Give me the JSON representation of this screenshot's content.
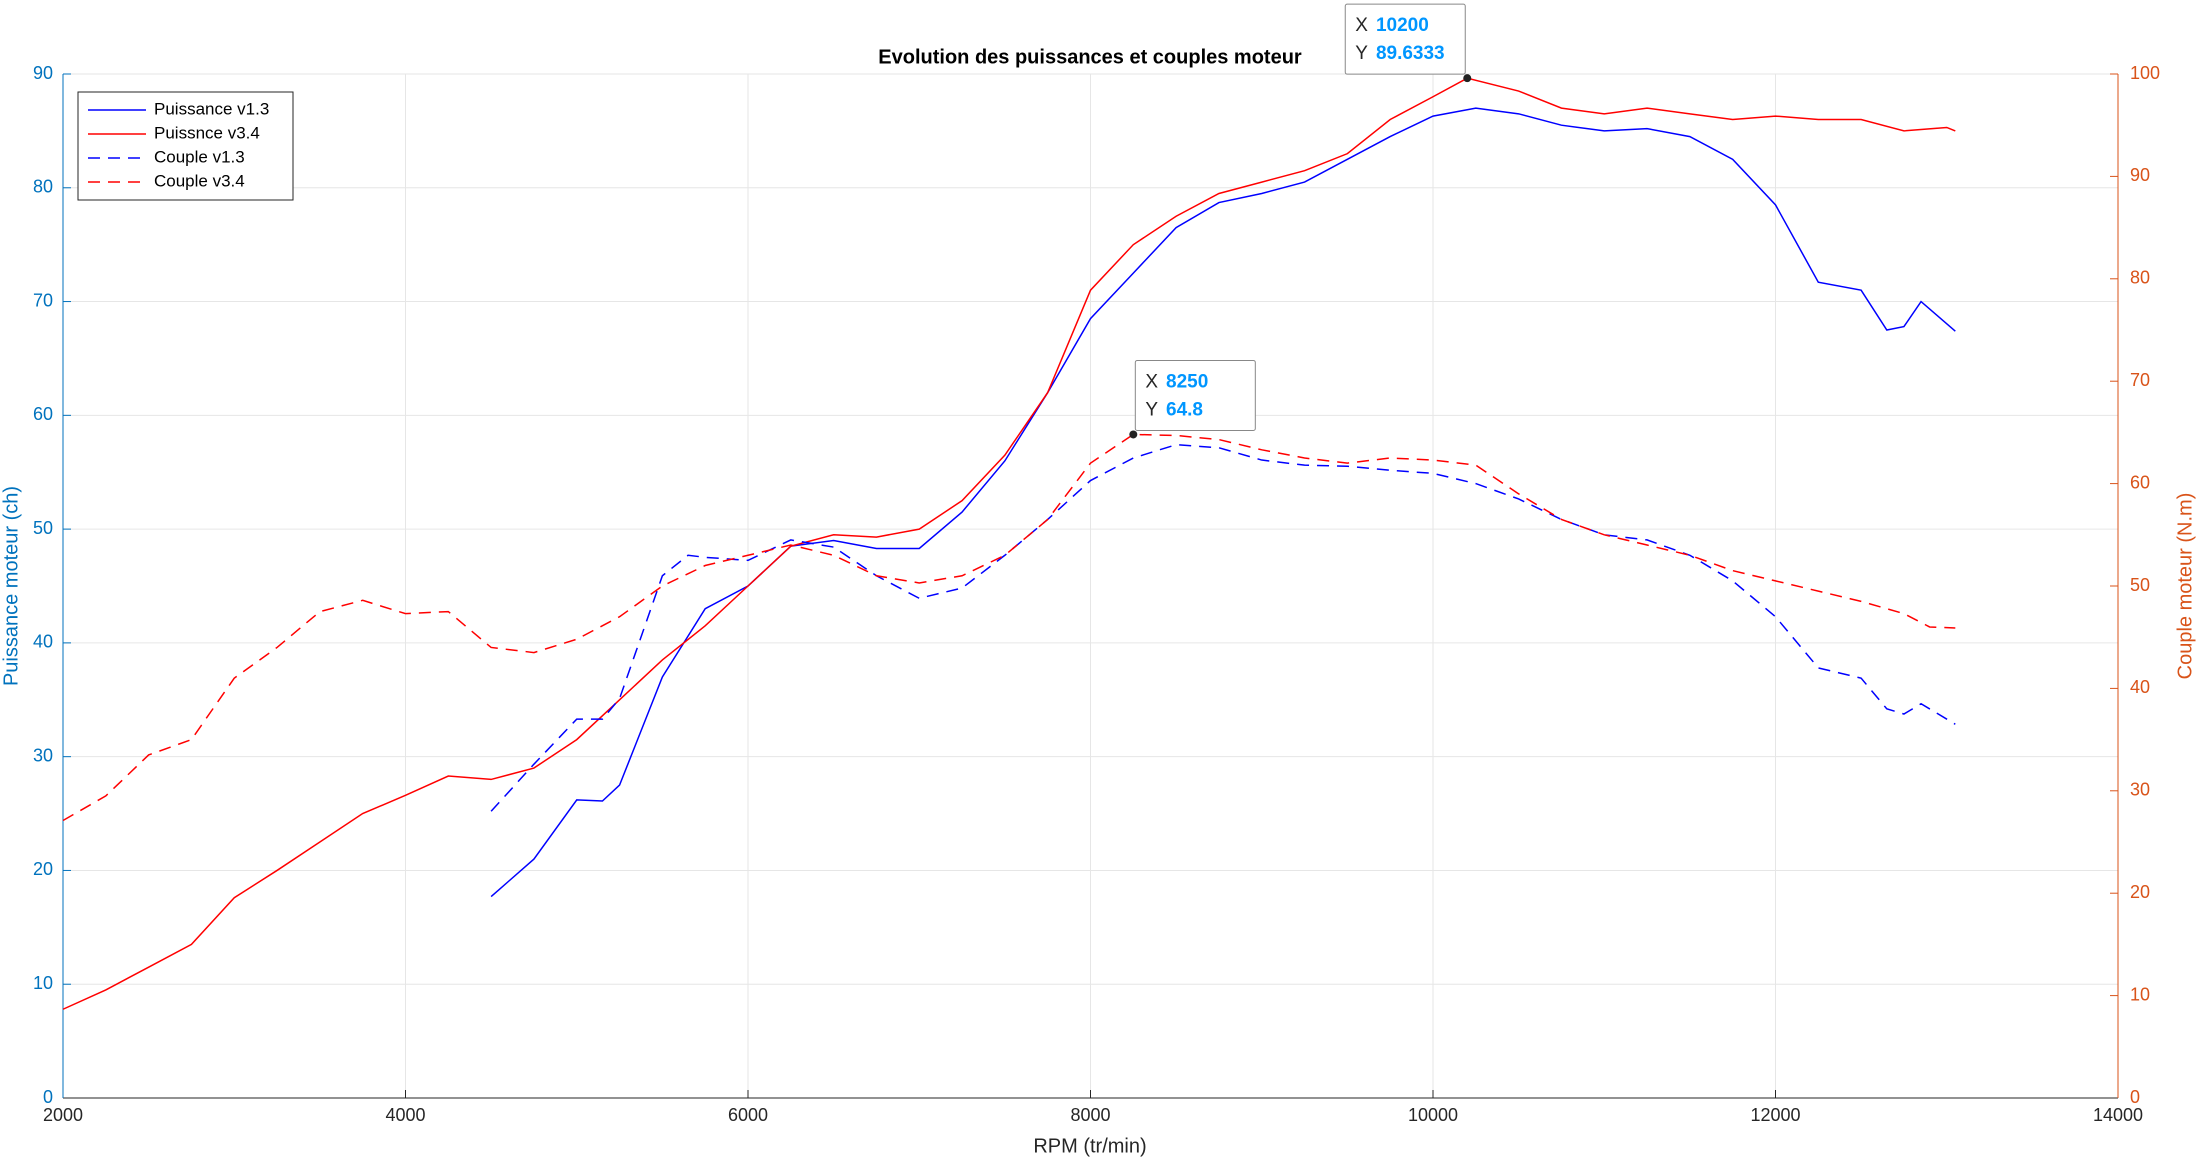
{
  "chart_data": {
    "type": "line",
    "title": "Evolution des puissances et couples moteur",
    "xlabel": "RPM (tr/min)",
    "ylabel": "Puissance moteur (ch)",
    "y2label": "Couple moteur (N.m)",
    "xlim": [
      2000,
      14000
    ],
    "xticks": [
      2000,
      4000,
      6000,
      8000,
      10000,
      12000,
      14000
    ],
    "ylim": [
      0,
      90
    ],
    "yticks": [
      0,
      10,
      20,
      30,
      40,
      50,
      60,
      70,
      80,
      90
    ],
    "y2lim": [
      0,
      100
    ],
    "y2ticks": [
      0,
      10,
      20,
      30,
      40,
      50,
      60,
      70,
      80,
      90,
      100
    ],
    "ycolor": "#0072bd",
    "y2color": "#d95319",
    "grid": true,
    "legend": "northwest",
    "series": [
      {
        "name": "Puissance v1.3",
        "color": "#0000ff",
        "linestyle": "solid",
        "axis": "y",
        "x": [
          4500,
          4750,
          5000,
          5150,
          5250,
          5500,
          5750,
          6000,
          6250,
          6500,
          6750,
          7000,
          7250,
          7500,
          7750,
          8000,
          8250,
          8500,
          8750,
          9000,
          9250,
          9500,
          9750,
          10000,
          10250,
          10500,
          10750,
          11000,
          11250,
          11500,
          11750,
          12000,
          12250,
          12500,
          12650,
          12750,
          12850,
          13050
        ],
        "values": [
          17.7,
          21,
          26.2,
          26.1,
          27.5,
          37,
          43,
          45,
          48.5,
          49,
          48.3,
          48.3,
          51.5,
          56,
          62,
          68.5,
          72.5,
          76.5,
          78.7,
          79.5,
          80.5,
          82.5,
          84.5,
          86.3,
          87,
          86.5,
          85.5,
          85,
          85.2,
          84.5,
          82.5,
          78.5,
          71.7,
          71,
          67.5,
          67.8,
          70,
          67.4
        ]
      },
      {
        "name": "Puissnce v3.4",
        "color": "#ff0000",
        "linestyle": "solid",
        "axis": "y",
        "x": [
          2000,
          2250,
          2500,
          2750,
          3000,
          3250,
          3500,
          3750,
          4000,
          4250,
          4500,
          4750,
          5000,
          5250,
          5500,
          5750,
          6000,
          6250,
          6500,
          6750,
          7000,
          7250,
          7500,
          7750,
          8000,
          8250,
          8500,
          8750,
          9000,
          9250,
          9500,
          9750,
          10000,
          10200,
          10500,
          10750,
          11000,
          11250,
          11500,
          11750,
          12000,
          12250,
          12500,
          12750,
          13000,
          13050
        ],
        "values": [
          7.8,
          9.5,
          11.5,
          13.5,
          17.6,
          20,
          22.5,
          25,
          26.6,
          28.3,
          28,
          29,
          31.5,
          35,
          38.5,
          41.5,
          45,
          48.5,
          49.5,
          49.3,
          50,
          52.5,
          56.5,
          62,
          71,
          75,
          77.5,
          79.5,
          80.5,
          81.5,
          83,
          86,
          88,
          89.6333,
          88.5,
          87,
          86.5,
          87,
          86.5,
          86,
          86.3,
          86,
          86,
          85,
          85.3,
          85
        ]
      },
      {
        "name": "Couple v1.3",
        "color": "#0000ff",
        "linestyle": "dashed",
        "axis": "y2",
        "x": [
          4500,
          4750,
          5000,
          5150,
          5250,
          5500,
          5650,
          5750,
          6000,
          6250,
          6500,
          6750,
          7000,
          7250,
          7500,
          7750,
          8000,
          8250,
          8500,
          8750,
          9000,
          9250,
          9500,
          9750,
          10000,
          10250,
          10500,
          10750,
          11000,
          11250,
          11500,
          11750,
          12000,
          12250,
          12500,
          12650,
          12750,
          12850,
          13050
        ],
        "values": [
          28,
          32.6,
          37,
          37,
          39,
          51,
          53,
          52.8,
          52.5,
          54.5,
          53.8,
          51,
          48.8,
          49.8,
          53,
          56.5,
          60.3,
          62.5,
          63.8,
          63.5,
          62.3,
          61.8,
          61.7,
          61.3,
          61,
          60,
          58.5,
          56.5,
          55,
          54.5,
          53,
          50.5,
          47,
          42,
          41,
          38,
          37.5,
          38.5,
          36.5
        ]
      },
      {
        "name": "Couple v3.4",
        "color": "#ff0000",
        "linestyle": "dashed",
        "axis": "y2",
        "x": [
          2000,
          2250,
          2500,
          2750,
          3000,
          3250,
          3500,
          3750,
          4000,
          4250,
          4500,
          4750,
          5000,
          5250,
          5500,
          5750,
          6000,
          6250,
          6500,
          6750,
          7000,
          7250,
          7500,
          7750,
          8000,
          8250,
          8500,
          8750,
          9000,
          9250,
          9500,
          9750,
          10000,
          10250,
          10500,
          10750,
          11000,
          11250,
          11500,
          11750,
          12000,
          12250,
          12500,
          12750,
          12900,
          13050
        ],
        "values": [
          27.1,
          29.5,
          33.5,
          35,
          41,
          44,
          47.5,
          48.6,
          47.3,
          47.5,
          44,
          43.5,
          44.8,
          47,
          50,
          52,
          53,
          54,
          53,
          51,
          50.3,
          51,
          53,
          56.5,
          62,
          64.8,
          64.7,
          64.3,
          63.3,
          62.5,
          62,
          62.5,
          62.3,
          61.8,
          59,
          56.5,
          55,
          54,
          53,
          51.5,
          50.5,
          49.5,
          48.5,
          47.3,
          46,
          45.9
        ]
      }
    ],
    "annotations": [
      {
        "x_label": "X",
        "y_label": "Y",
        "x": 10200,
        "y": 89.6333,
        "axis": "y"
      },
      {
        "x_label": "X",
        "y_label": "Y",
        "x": 8250,
        "y": 64.8,
        "axis": "y2"
      }
    ]
  }
}
